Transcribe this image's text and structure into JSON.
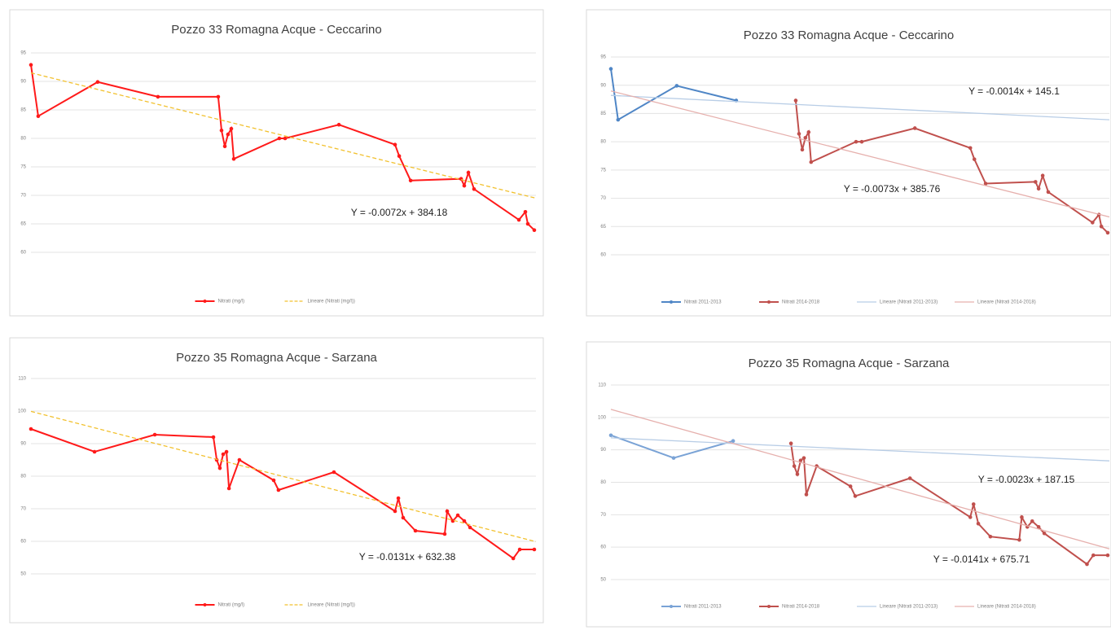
{
  "chart_data": [
    {
      "type": "line",
      "title": "Pozzo 33 Romagna Acque - Ceccarino",
      "xlim": [
        40650,
        43700
      ],
      "ylim": [
        60,
        95
      ],
      "yticks": [
        60,
        65,
        70,
        75,
        80,
        85,
        90,
        95
      ],
      "grid": true,
      "series": [
        {
          "name": "Nitrati (mg/l)",
          "color": "#ff1a1a",
          "markers": true,
          "dashed": false,
          "x": [
            40650,
            40694,
            41053,
            41417,
            41781,
            41801,
            41821,
            41840,
            41860,
            41875,
            42150,
            42185,
            42510,
            42849,
            42874,
            42943,
            43248,
            43267,
            43292,
            43326,
            43597,
            43636,
            43651,
            43690
          ],
          "values": [
            92.9,
            83.9,
            89.9,
            87.3,
            87.3,
            81.4,
            78.6,
            80.7,
            81.7,
            76.4,
            80,
            80,
            82.4,
            78.9,
            76.9,
            72.6,
            72.9,
            71.7,
            74,
            71.1,
            65.7,
            67.1,
            65,
            63.9
          ]
        },
        {
          "name": "Lineare (Nitrati (mg/l))",
          "color": "#f2c12e",
          "markers": false,
          "dashed": true,
          "x": [
            40650,
            43700
          ],
          "values": [
            91.5,
            69.5
          ]
        }
      ],
      "annotations": [
        "Y = -0.0072x + 384.18"
      ]
    },
    {
      "type": "line",
      "title": "Pozzo 33 Romagna Acque - Ceccarino",
      "xlim": [
        40650,
        43700
      ],
      "ylim": [
        60,
        95
      ],
      "yticks": [
        60,
        65,
        70,
        75,
        80,
        85,
        90,
        95
      ],
      "grid": true,
      "series": [
        {
          "name": "Nitrati 2011-2013",
          "color": "#4f86c6",
          "markers": true,
          "dashed": false,
          "x": [
            40650,
            40694,
            41053,
            41417
          ],
          "values": [
            92.9,
            83.9,
            89.9,
            87.3
          ]
        },
        {
          "name": "Nitrati 2014-2018",
          "color": "#c0504d",
          "markers": true,
          "dashed": false,
          "x": [
            41781,
            41801,
            41821,
            41840,
            41860,
            41875,
            42150,
            42185,
            42510,
            42849,
            42874,
            42943,
            43248,
            43267,
            43292,
            43326,
            43597,
            43636,
            43651,
            43690
          ],
          "values": [
            87.3,
            81.4,
            78.6,
            80.7,
            81.7,
            76.4,
            80,
            80,
            82.4,
            78.9,
            76.9,
            72.6,
            72.9,
            71.7,
            74,
            71.1,
            65.7,
            67.1,
            65,
            63.9
          ]
        },
        {
          "name": "Lineare (Nitrati 2011-2013)",
          "color": "#b8cde6",
          "markers": false,
          "dashed": false,
          "x": [
            40650,
            43700
          ],
          "values": [
            88.2,
            83.9
          ]
        },
        {
          "name": "Lineare (Nitrati 2014-2018)",
          "color": "#e6b0ad",
          "markers": false,
          "dashed": false,
          "x": [
            40650,
            43700
          ],
          "values": [
            89.0,
            66.7
          ]
        }
      ],
      "annotations": [
        "Y = -0.0014x + 145.1",
        "Y = -0.0073x + 385.76"
      ]
    },
    {
      "type": "line",
      "title": "Pozzo 35 Romagna Acque - Sarzana",
      "xlim": [
        40650,
        43700
      ],
      "ylim": [
        50,
        110
      ],
      "yticks": [
        50,
        60,
        70,
        80,
        90,
        100,
        110
      ],
      "grid": true,
      "series": [
        {
          "name": "Nitrati (mg/l)",
          "color": "#ff1a1a",
          "markers": true,
          "dashed": false,
          "x": [
            40650,
            41034,
            41398,
            41752,
            41772,
            41791,
            41811,
            41831,
            41846,
            41909,
            42116,
            42145,
            42480,
            42849,
            42869,
            42898,
            42972,
            43149,
            43164,
            43198,
            43228,
            43267,
            43302,
            43563,
            43602,
            43690
          ],
          "values": [
            94.5,
            87.5,
            92.75,
            92,
            85,
            82.5,
            86.75,
            87.5,
            76.25,
            85,
            78.75,
            75.75,
            81.25,
            69.25,
            73.25,
            67.25,
            63.25,
            62.25,
            69.25,
            66.25,
            68,
            66.25,
            64.25,
            54.75,
            57.5,
            57.5
          ]
        },
        {
          "name": "Lineare (Nitrati (mg/l))",
          "color": "#f2c12e",
          "markers": false,
          "dashed": true,
          "x": [
            40650,
            43700
          ],
          "values": [
            99.9,
            59.9
          ]
        }
      ],
      "annotations": [
        "Y = -0.0131x + 632.38"
      ]
    },
    {
      "type": "line",
      "title": "Pozzo 35 Romagna Acque - Sarzana",
      "xlim": [
        40650,
        43700
      ],
      "ylim": [
        50,
        110
      ],
      "yticks": [
        50,
        60,
        70,
        80,
        90,
        100,
        110
      ],
      "grid": true,
      "series": [
        {
          "name": "Nitrati 2011-2013",
          "color": "#7aa3d6",
          "markers": true,
          "dashed": false,
          "x": [
            40650,
            41034,
            41398
          ],
          "values": [
            94.5,
            87.5,
            92.75
          ]
        },
        {
          "name": "Nitrati 2014-2018",
          "color": "#c0504d",
          "markers": true,
          "dashed": false,
          "x": [
            41752,
            41772,
            41791,
            41811,
            41831,
            41846,
            41909,
            42116,
            42145,
            42480,
            42849,
            42869,
            42898,
            42972,
            43149,
            43164,
            43198,
            43228,
            43267,
            43302,
            43563,
            43602,
            43690
          ],
          "values": [
            92,
            85,
            82.5,
            86.75,
            87.5,
            76.25,
            85,
            78.75,
            75.75,
            81.25,
            69.25,
            73.25,
            67.25,
            63.25,
            62.25,
            69.25,
            66.25,
            68,
            66.25,
            64.25,
            54.75,
            57.5,
            57.5
          ]
        },
        {
          "name": "Lineare (Nitrati 2011-2013)",
          "color": "#b8cde6",
          "markers": false,
          "dashed": false,
          "x": [
            40650,
            43700
          ],
          "values": [
            93.7,
            86.6
          ]
        },
        {
          "name": "Lineare (Nitrati 2014-2018)",
          "color": "#e6b0ad",
          "markers": false,
          "dashed": false,
          "x": [
            40650,
            43700
          ],
          "values": [
            102.5,
            59.5
          ]
        }
      ],
      "annotations": [
        "Y = -0.0023x + 187.15",
        "Y = -0.0141x + 675.71"
      ]
    }
  ]
}
